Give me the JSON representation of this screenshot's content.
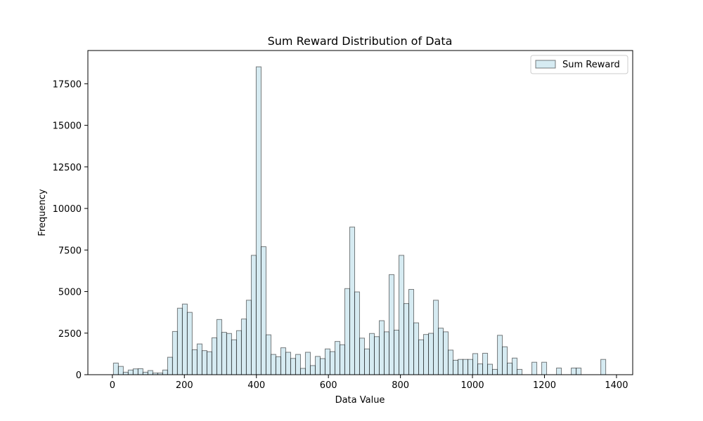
{
  "chart_data": {
    "type": "bar",
    "title": "Sum Reward Distribution of Data",
    "xlabel": "Data Value",
    "ylabel": "Frequency",
    "xlim": [
      -68,
      1445
    ],
    "ylim": [
      0,
      19500
    ],
    "xticks": [
      0,
      200,
      400,
      600,
      800,
      1000,
      1200,
      1400
    ],
    "yticks": [
      0,
      2500,
      5000,
      7500,
      10000,
      12500,
      15000,
      17500
    ],
    "grid": false,
    "legend_position": "top-right",
    "bin_width": 13.67,
    "bar_color": "#add8e6",
    "edge_color": "#000000",
    "series": [
      {
        "name": "Sum Reward",
        "bins_start": [
          3.0,
          16.7,
          30.3,
          44.0,
          57.7,
          71.3,
          85.0,
          98.7,
          112.4,
          126.0,
          139.7,
          153.4,
          167.0,
          180.7,
          194.4,
          208.0,
          221.7,
          235.4,
          249.1,
          262.7,
          276.4,
          290.1,
          303.7,
          317.4,
          331.1,
          344.8,
          358.4,
          372.1,
          385.8,
          399.4,
          413.1,
          426.8,
          440.4,
          454.1,
          467.8,
          481.5,
          495.1,
          508.8,
          522.5,
          536.1,
          549.8,
          563.5,
          577.1,
          590.8,
          604.5,
          618.2,
          631.8,
          645.5,
          659.2,
          672.8,
          686.5,
          700.2,
          713.9,
          727.5,
          741.2,
          754.9,
          768.5,
          782.2,
          795.9,
          809.5,
          823.2,
          836.9,
          850.6,
          864.2,
          877.9,
          891.6,
          905.2,
          918.9,
          932.6,
          946.2,
          959.9,
          973.6,
          987.3,
          1000.9,
          1014.6,
          1028.3,
          1041.9,
          1055.6,
          1069.3,
          1082.9,
          1096.6,
          1110.3,
          1124.0,
          1137.6,
          1151.3,
          1165.0,
          1178.6,
          1192.3,
          1206.0,
          1219.7,
          1233.3,
          1247.0,
          1260.7,
          1274.3,
          1288.0,
          1301.7,
          1315.3,
          1329.0,
          1342.7,
          1356.4
        ],
        "values": [
          700,
          500,
          150,
          280,
          350,
          360,
          150,
          250,
          100,
          100,
          280,
          1050,
          2600,
          4000,
          4250,
          3750,
          1500,
          1850,
          1450,
          1380,
          2220,
          3320,
          2550,
          2480,
          2100,
          2650,
          3350,
          4480,
          7180,
          18520,
          7700,
          2400,
          1220,
          1080,
          1620,
          1350,
          980,
          1220,
          380,
          1350,
          550,
          1100,
          970,
          1550,
          1390,
          2000,
          1800,
          5180,
          8880,
          4980,
          2200,
          1550,
          2480,
          2290,
          3250,
          2580,
          6020,
          2680,
          7180,
          4280,
          5130,
          3120,
          2100,
          2420,
          2490,
          4480,
          2800,
          2580,
          1480,
          870,
          920,
          920,
          920,
          1270,
          650,
          1290,
          630,
          320,
          2370,
          1680,
          700,
          1000,
          320,
          0,
          0,
          750,
          0,
          750,
          0,
          0,
          400,
          0,
          0,
          400,
          400,
          0,
          0,
          0,
          0,
          920
        ]
      }
    ]
  }
}
